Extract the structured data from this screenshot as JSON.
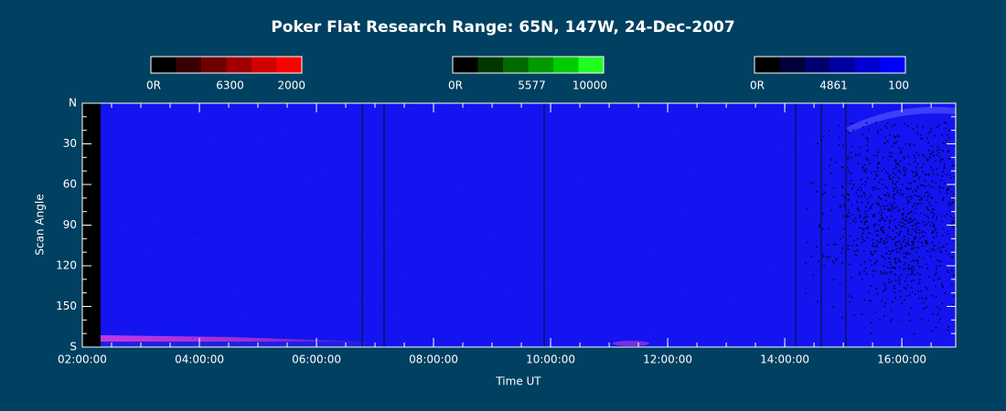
{
  "chart_data": {
    "type": "keogram",
    "title": "Poker Flat Research Range: 65N, 147W, 24-Dec-2007",
    "xlabel": "Time UT",
    "ylabel": "Scan Angle",
    "xlim": [
      2,
      16.92
    ],
    "xticks": [
      {
        "value": 2,
        "label": "02:00:00"
      },
      {
        "value": 4,
        "label": "04:00:00"
      },
      {
        "value": 6,
        "label": "06:00:00"
      },
      {
        "value": 8,
        "label": "08:00:00"
      },
      {
        "value": 10,
        "label": "10:00:00"
      },
      {
        "value": 12,
        "label": "12:00:00"
      },
      {
        "value": 14,
        "label": "14:00:00"
      },
      {
        "value": 16,
        "label": "16:00:00"
      }
    ],
    "ylim": [
      0,
      180
    ],
    "yticks": [
      {
        "value": 0,
        "label": "N"
      },
      30,
      60,
      90,
      120,
      150,
      {
        "value": 180,
        "label": "S"
      }
    ],
    "colorbars": [
      {
        "labels": [
          "0R",
          "6300",
          "2000"
        ],
        "colors": [
          "#000000",
          "#3a0000",
          "#6e0000",
          "#a00000",
          "#d00000",
          "#ff0000"
        ]
      },
      {
        "labels": [
          "0R",
          "5577",
          "10000"
        ],
        "colors": [
          "#000000",
          "#003800",
          "#006a00",
          "#009a00",
          "#00cc00",
          "#20ff20"
        ]
      },
      {
        "labels": [
          "0R",
          "4861",
          "100"
        ],
        "colors": [
          "#000000",
          "#00003a",
          "#00006e",
          "#0000a0",
          "#0000d0",
          "#0000ff"
        ]
      }
    ]
  }
}
